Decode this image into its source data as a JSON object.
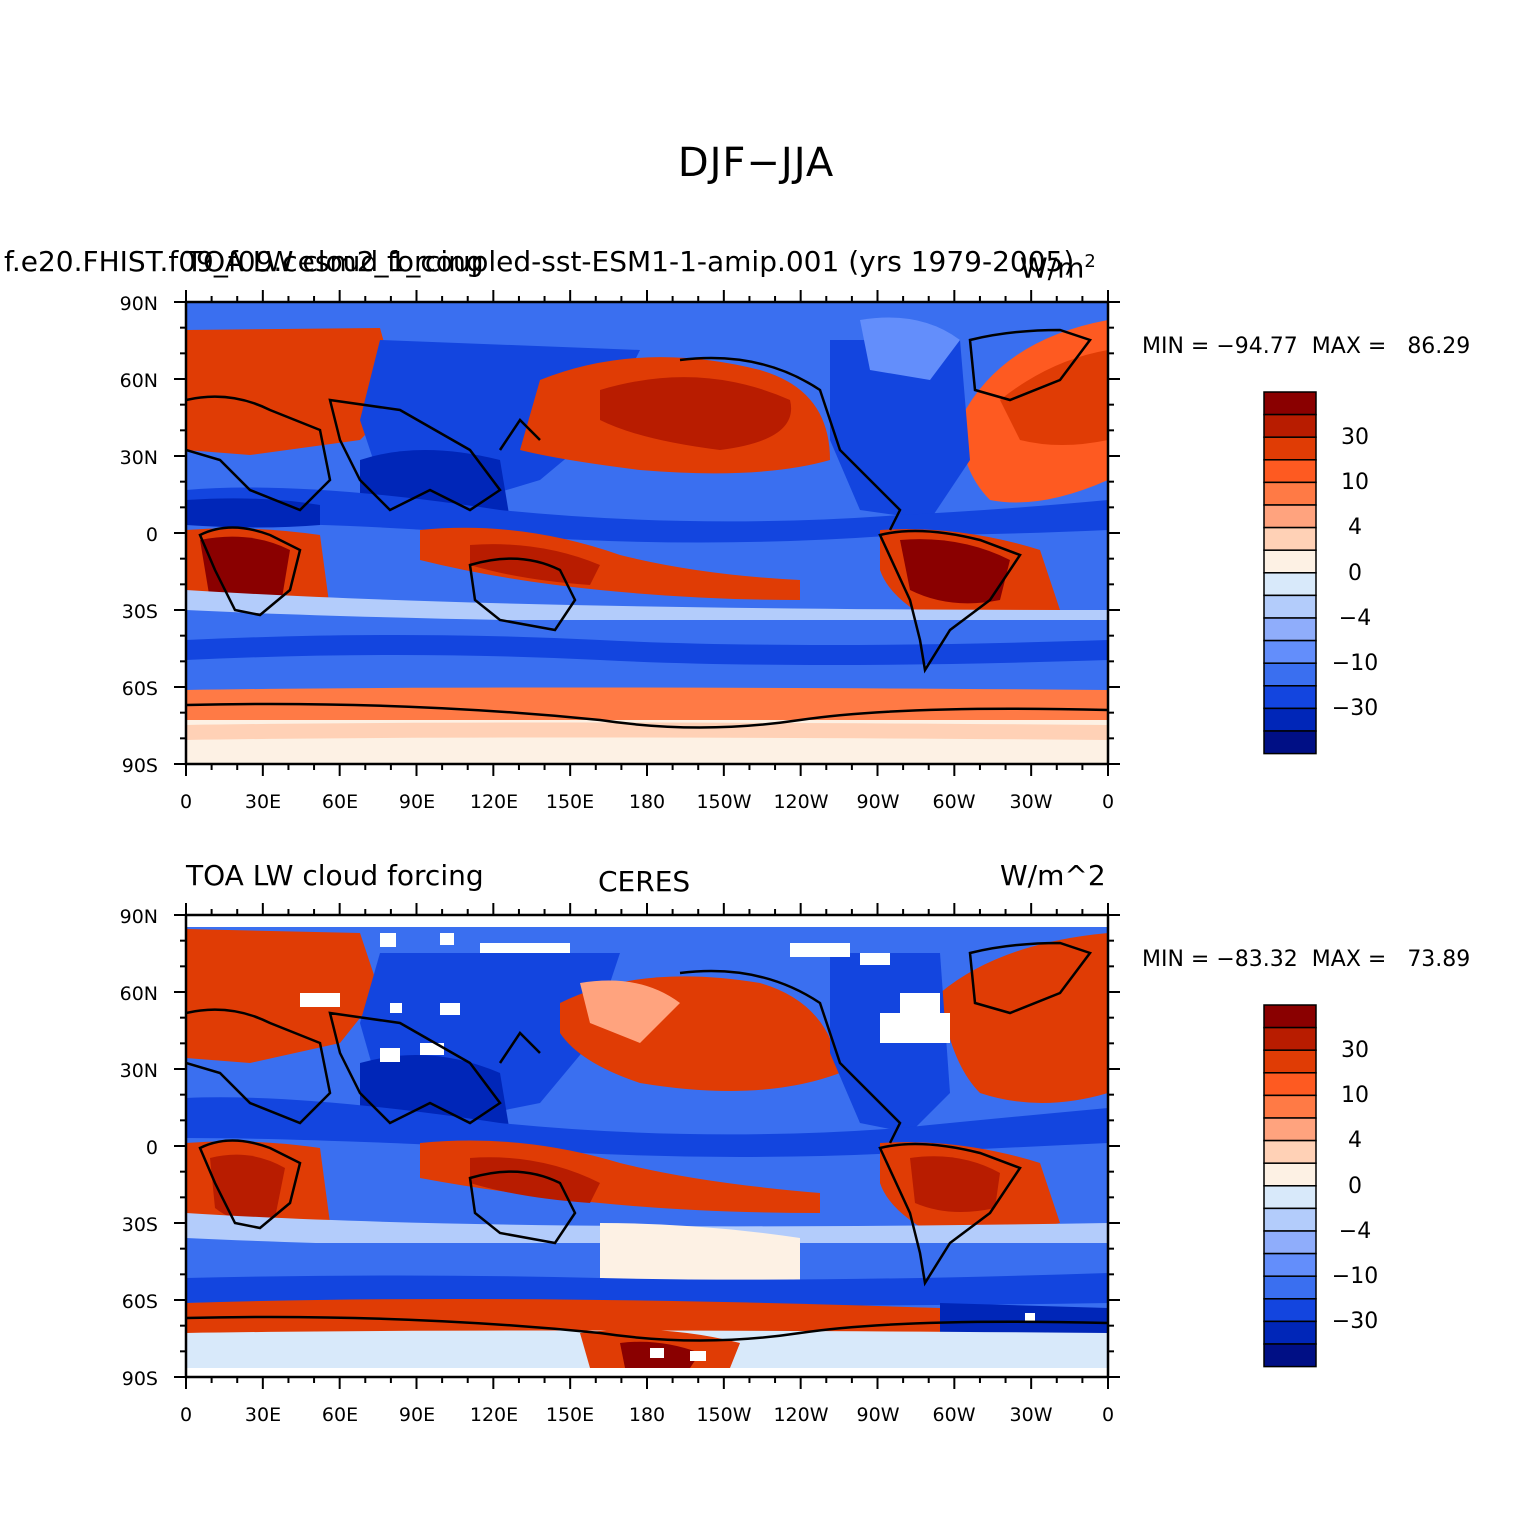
{
  "figure_title": "DJF−JJA",
  "colorbar_labels": [
    "30",
    "10",
    "4",
    "0",
    "−4",
    "−10",
    "−30"
  ],
  "colorbar_colors": [
    "#8a0000",
    "#b81c00",
    "#e03c05",
    "#fe5a21",
    "#ff7a45",
    "#ffa37e",
    "#ffd1b6",
    "#fdf1e4",
    "#d8e9fa",
    "#b3ccfb",
    "#8fadfb",
    "#638efb",
    "#3a6ff0",
    "#1345df",
    "#0026b8",
    "#000f85"
  ],
  "lat_labels": [
    "90N",
    "60N",
    "30N",
    "0",
    "30S",
    "60S",
    "90S"
  ],
  "lon_labels": [
    "0",
    "30E",
    "60E",
    "90E",
    "120E",
    "150E",
    "180",
    "150W",
    "120W",
    "90W",
    "60W",
    "30W",
    "0"
  ],
  "panels": [
    {
      "left_title": "f.e20.FHIST.f09_f09.cesm2_1_coupled-sst-ESM1-1-amip.001 (yrs 1979-2005)",
      "overlap_title": "TOA LW cloud forcing",
      "center_title": "",
      "right_title": "W/m",
      "right_title_sup": "2",
      "min_label": "MIN = ",
      "min_value": "−94.77",
      "max_label": "MAX = ",
      "max_value": "86.29"
    },
    {
      "left_title": "TOA LW cloud forcing",
      "overlap_title": "",
      "center_title": "CERES",
      "right_title": "W/m^2",
      "right_title_sup": "",
      "min_label": "MIN = ",
      "min_value": "−83.32",
      "max_label": "MAX = ",
      "max_value": "73.89"
    }
  ]
}
